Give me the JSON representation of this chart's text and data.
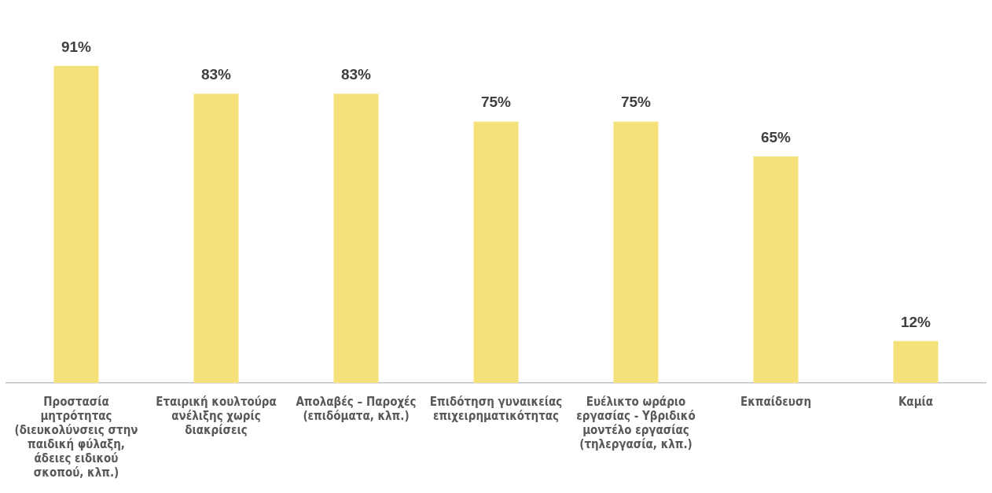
{
  "chart_data": {
    "type": "bar",
    "categories": [
      "Προστασία μητρότητας (διευκολύνσεις στην παιδική φύλαξη, άδειες ειδικού σκοπού, κλπ.)",
      "Εταιρική κουλτούρα ανέλιξης χωρίς διακρίσεις",
      "Απολαβές – Παροχές (επιδόματα, κλπ.)",
      "Επιδότηση γυναικείας επιχειρηματικότητας",
      "Ευέλικτο ωράριο εργασίας - Υβριδικό μοντέλο εργασίας (τηλεργασία, κλπ.)",
      "Εκπαίδευση",
      "Καμία"
    ],
    "values": [
      91,
      83,
      83,
      75,
      75,
      65,
      12
    ],
    "value_labels": [
      "91%",
      "83%",
      "83%",
      "75%",
      "75%",
      "65%",
      "12%"
    ],
    "color": "#f5e17a",
    "grid": false,
    "legend": false
  }
}
